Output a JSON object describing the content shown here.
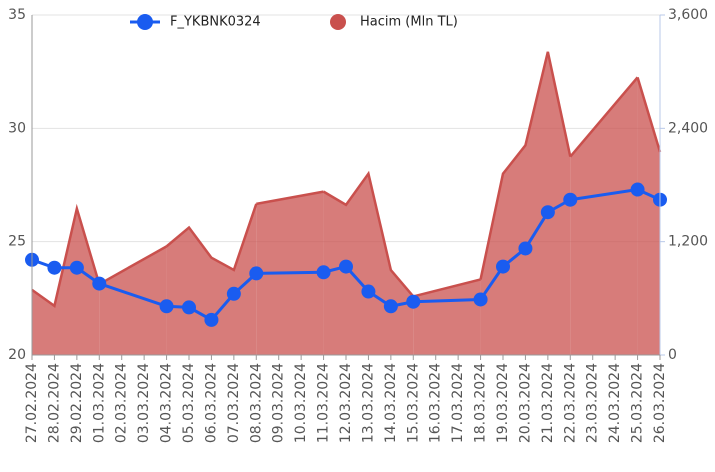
{
  "chart_data": {
    "type": "line",
    "categories": [
      "27.02.2024",
      "28.02.2024",
      "29.02.2024",
      "01.03.2024",
      "02.03.2024",
      "03.03.2024",
      "04.03.2024",
      "05.03.2024",
      "06.03.2024",
      "07.03.2024",
      "08.03.2024",
      "09.03.2024",
      "10.03.2024",
      "11.03.2024",
      "12.03.2024",
      "13.03.2024",
      "14.03.2024",
      "15.03.2024",
      "16.03.2024",
      "17.03.2024",
      "18.03.2024",
      "19.03.2024",
      "20.03.2024",
      "21.03.2024",
      "22.03.2024",
      "23.03.2024",
      "24.03.2024",
      "25.03.2024",
      "26.03.2024"
    ],
    "series": [
      {
        "name": "F_YKBNK0324",
        "type": "line",
        "color": "#1a5cf0",
        "values": [
          24.2,
          23.85,
          23.85,
          23.15,
          null,
          null,
          22.15,
          22.1,
          21.55,
          22.7,
          23.6,
          null,
          null,
          23.65,
          23.9,
          22.8,
          22.15,
          22.35,
          null,
          null,
          22.45,
          23.9,
          24.7,
          26.3,
          26.85,
          null,
          null,
          27.3,
          26.85
        ]
      },
      {
        "name": "Hacim (Mln TL)",
        "type": "area",
        "axis": "y2",
        "color": "#c9504d",
        "values": [
          690,
          520,
          1550,
          750,
          null,
          null,
          1150,
          1350,
          1030,
          900,
          1600,
          null,
          null,
          1730,
          1590,
          1920,
          900,
          620,
          null,
          null,
          800,
          1920,
          2220,
          3210,
          2100,
          null,
          null,
          2940,
          2150
        ]
      }
    ],
    "ylim": [
      20,
      35
    ],
    "yticks": [
      20,
      25,
      30,
      35
    ],
    "y2lim": [
      0,
      3600
    ],
    "y2ticks": [
      0,
      {
        "value": 1200,
        "label": "1,200"
      },
      {
        "value": 2400,
        "label": "2,400"
      },
      {
        "value": 3600,
        "label": "3,600"
      }
    ],
    "grid": true,
    "legend": "top"
  }
}
